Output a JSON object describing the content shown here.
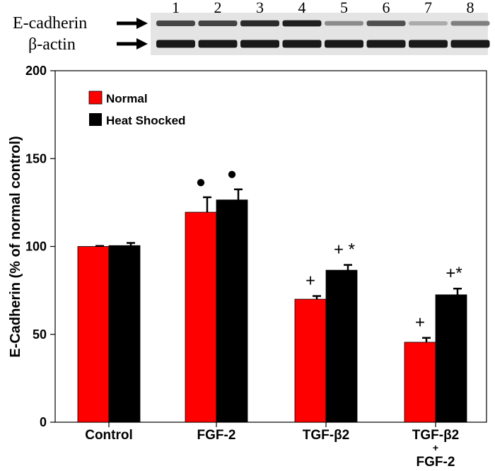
{
  "blot": {
    "lanes": [
      "1",
      "2",
      "3",
      "4",
      "5",
      "6",
      "7",
      "8"
    ],
    "rows": [
      {
        "label": "E-cadherin",
        "intensity": [
          0.72,
          0.74,
          0.86,
          0.92,
          0.38,
          0.68,
          0.22,
          0.44
        ]
      },
      {
        "label": "β-actin",
        "intensity": [
          0.95,
          0.95,
          0.95,
          0.95,
          0.95,
          0.95,
          0.95,
          0.95
        ]
      }
    ]
  },
  "chart_data": {
    "type": "bar",
    "title": "",
    "xlabel": "",
    "ylabel": "E-Cadherin (% of normal control)",
    "ylim": [
      0,
      200
    ],
    "yticks": [
      0,
      50,
      100,
      150,
      200
    ],
    "categories": [
      "Control",
      "FGF-2",
      "TGF-β2",
      "TGF-β2 + FGF-2"
    ],
    "category_lines": [
      [
        "Control"
      ],
      [
        "FGF-2"
      ],
      [
        "TGF-β2"
      ],
      [
        "TGF-β2",
        "+",
        "FGF-2"
      ]
    ],
    "series": [
      {
        "name": "Normal",
        "color": "#ff0000",
        "values": [
          100,
          119.5,
          70,
          45.5
        ],
        "errors": [
          0.3,
          8.5,
          1.8,
          2.5
        ],
        "annotations": [
          "",
          "●",
          "+",
          "+"
        ]
      },
      {
        "name": "Heat Shocked",
        "color": "#000000",
        "values": [
          100.5,
          126.5,
          86.5,
          72.5
        ],
        "errors": [
          1.5,
          6,
          3,
          3.5
        ],
        "annotations": [
          "",
          "●",
          "+ *",
          "+*"
        ]
      }
    ],
    "legend_position": "top-left"
  }
}
